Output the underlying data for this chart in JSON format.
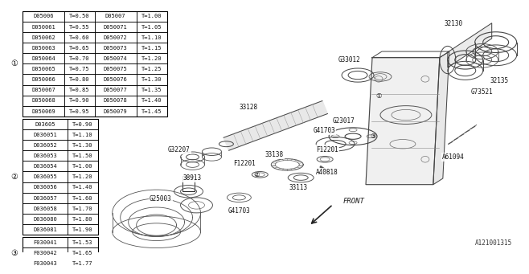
{
  "bg_color": "#ffffff",
  "table1": {
    "title_num": "①",
    "rows": [
      [
        "D05006",
        "T=0.50",
        "D05007",
        "T=1.00"
      ],
      [
        "D050061",
        "T=0.55",
        "D050071",
        "T=1.05"
      ],
      [
        "D050062",
        "T=0.60",
        "D050072",
        "T=1.10"
      ],
      [
        "D050063",
        "T=0.65",
        "D050073",
        "T=1.15"
      ],
      [
        "D050064",
        "T=0.70",
        "D050074",
        "T=1.20"
      ],
      [
        "D050065",
        "T=0.75",
        "D050075",
        "T=1.25"
      ],
      [
        "D050066",
        "T=0.80",
        "D050076",
        "T=1.30"
      ],
      [
        "D050067",
        "T=0.85",
        "D050077",
        "T=1.35"
      ],
      [
        "D050068",
        "T=0.90",
        "D050078",
        "T=1.40"
      ],
      [
        "D050069",
        "T=0.95",
        "D050079",
        "T=1.45"
      ]
    ]
  },
  "table2": {
    "title_num": "②",
    "rows": [
      [
        "D03605",
        "T=0.90"
      ],
      [
        "D036051",
        "T=1.10"
      ],
      [
        "D036052",
        "T=1.30"
      ],
      [
        "D036053",
        "T=1.50"
      ],
      [
        "D036054",
        "T=1.00"
      ],
      [
        "D036055",
        "T=1.20"
      ],
      [
        "D036056",
        "T=1.40"
      ],
      [
        "D036057",
        "T=1.60"
      ],
      [
        "D036058",
        "T=1.70"
      ],
      [
        "D036080",
        "T=1.80"
      ],
      [
        "D036081",
        "T=1.90"
      ]
    ]
  },
  "table3": {
    "title_num": "③",
    "rows": [
      [
        "F030041",
        "T=1.53"
      ],
      [
        "F030042",
        "T=1.65"
      ],
      [
        "F030043",
        "T=1.77"
      ]
    ]
  },
  "footer_text": "A121001315"
}
